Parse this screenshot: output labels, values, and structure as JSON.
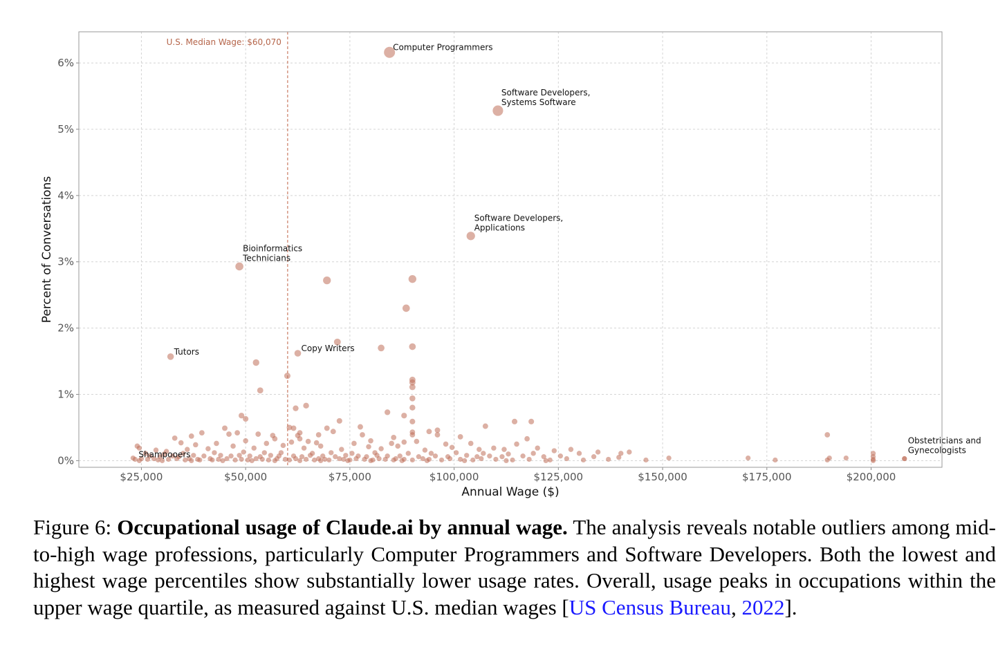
{
  "chart_data": {
    "type": "scatter",
    "xlabel": "Annual Wage ($)",
    "ylabel": "Percent of Conversations",
    "xlim": [
      10000,
      217000
    ],
    "ylim": [
      -0.001,
      0.0647
    ],
    "x_ticks": [
      25000,
      50000,
      75000,
      100000,
      125000,
      150000,
      175000,
      200000
    ],
    "x_tick_labels": [
      "$25,000",
      "$50,000",
      "$75,000",
      "$100,000",
      "$125,000",
      "$150,000",
      "$175,000",
      "$200,000"
    ],
    "y_ticks": [
      0,
      0.01,
      0.02,
      0.03,
      0.04,
      0.05,
      0.06
    ],
    "y_tick_labels": [
      "0%",
      "1%",
      "2%",
      "3%",
      "4%",
      "5%",
      "6%"
    ],
    "grid": true,
    "point_color": "#c0705a",
    "median_line": {
      "x": 60070,
      "label": "U.S. Median Wage: $60,070",
      "color": "#c97b62"
    },
    "labeled_points": [
      {
        "label": [
          "Computer Programmers"
        ],
        "x": 84500,
        "y": 0.0616
      },
      {
        "label": [
          "Software Developers,",
          "Systems Software"
        ],
        "x": 110500,
        "y": 0.0528
      },
      {
        "label": [
          "Software Developers,",
          "Applications"
        ],
        "x": 104000,
        "y": 0.0339
      },
      {
        "label": [
          "Bioinformatics",
          "Technicians"
        ],
        "x": 48500,
        "y": 0.0293
      },
      {
        "label": [
          "Tutors"
        ],
        "x": 32000,
        "y": 0.0157
      },
      {
        "label": [
          "Copy Writers"
        ],
        "x": 62500,
        "y": 0.0162
      },
      {
        "label": [
          "Shampooers"
        ],
        "x": 23500,
        "y": 0.0002
      },
      {
        "label": [
          "Obstetricians and",
          "Gynecologists"
        ],
        "x": 208000,
        "y": 0.0003
      }
    ],
    "points": [
      [
        69500,
        0.0272
      ],
      [
        90000,
        0.0274
      ],
      [
        88500,
        0.023
      ],
      [
        72000,
        0.0179
      ],
      [
        82500,
        0.017
      ],
      [
        90000,
        0.0172
      ],
      [
        52500,
        0.0148
      ],
      [
        60000,
        0.0128
      ],
      [
        53500,
        0.0106
      ],
      [
        90000,
        0.0122
      ],
      [
        90000,
        0.0118
      ],
      [
        90000,
        0.0111
      ],
      [
        90000,
        0.0094
      ],
      [
        90000,
        0.008
      ],
      [
        62000,
        0.0079
      ],
      [
        64500,
        0.0083
      ],
      [
        84000,
        0.0073
      ],
      [
        88000,
        0.0068
      ],
      [
        49000,
        0.0068
      ],
      [
        50000,
        0.0063
      ],
      [
        72500,
        0.006
      ],
      [
        90000,
        0.0059
      ],
      [
        114500,
        0.0059
      ],
      [
        118500,
        0.0059
      ],
      [
        107500,
        0.0052
      ],
      [
        77500,
        0.0051
      ],
      [
        60500,
        0.005
      ],
      [
        61500,
        0.0049
      ],
      [
        45000,
        0.0049
      ],
      [
        69500,
        0.0049
      ],
      [
        96000,
        0.0046
      ],
      [
        94000,
        0.0044
      ],
      [
        71000,
        0.0044
      ],
      [
        90000,
        0.0043
      ],
      [
        39500,
        0.0042
      ],
      [
        63000,
        0.0042
      ],
      [
        46000,
        0.004
      ],
      [
        53000,
        0.004
      ],
      [
        56500,
        0.0038
      ],
      [
        67500,
        0.0039
      ],
      [
        62500,
        0.0038
      ],
      [
        48000,
        0.0042
      ],
      [
        78000,
        0.0039
      ],
      [
        90000,
        0.0039
      ],
      [
        96000,
        0.0039
      ],
      [
        189500,
        0.0039
      ],
      [
        37000,
        0.0037
      ],
      [
        33000,
        0.0034
      ],
      [
        85500,
        0.0035
      ],
      [
        101500,
        0.0036
      ],
      [
        117500,
        0.0033
      ],
      [
        57000,
        0.0033
      ],
      [
        63000,
        0.0033
      ],
      [
        50000,
        0.003
      ],
      [
        61000,
        0.0028
      ],
      [
        65000,
        0.0029
      ],
      [
        80000,
        0.003
      ],
      [
        91000,
        0.0029
      ],
      [
        88000,
        0.0028
      ],
      [
        34500,
        0.0027
      ],
      [
        43000,
        0.0026
      ],
      [
        55000,
        0.0026
      ],
      [
        67000,
        0.0027
      ],
      [
        76000,
        0.0026
      ],
      [
        85000,
        0.0026
      ],
      [
        98000,
        0.0025
      ],
      [
        104000,
        0.0026
      ],
      [
        115000,
        0.0025
      ],
      [
        24000,
        0.0022
      ],
      [
        24500,
        0.0019
      ],
      [
        38000,
        0.0024
      ],
      [
        47000,
        0.0022
      ],
      [
        59000,
        0.0023
      ],
      [
        68000,
        0.0022
      ],
      [
        79500,
        0.0021
      ],
      [
        86500,
        0.0022
      ],
      [
        99500,
        0.002
      ],
      [
        109500,
        0.0019
      ],
      [
        120000,
        0.0019
      ],
      [
        28500,
        0.0016
      ],
      [
        31000,
        0.0014
      ],
      [
        36000,
        0.0017
      ],
      [
        41000,
        0.0018
      ],
      [
        52000,
        0.0019
      ],
      [
        64000,
        0.0019
      ],
      [
        73000,
        0.0017
      ],
      [
        82500,
        0.0018
      ],
      [
        93000,
        0.0016
      ],
      [
        106000,
        0.0017
      ],
      [
        112000,
        0.0017
      ],
      [
        128000,
        0.0017
      ],
      [
        124000,
        0.0015
      ],
      [
        134500,
        0.0013
      ],
      [
        142000,
        0.0013
      ],
      [
        140000,
        0.0011
      ],
      [
        130000,
        0.0011
      ],
      [
        26000,
        0.0011
      ],
      [
        30500,
        0.001
      ],
      [
        35000,
        0.0011
      ],
      [
        42500,
        0.0012
      ],
      [
        49500,
        0.0013
      ],
      [
        54500,
        0.0012
      ],
      [
        58500,
        0.0012
      ],
      [
        66000,
        0.0011
      ],
      [
        70500,
        0.0012
      ],
      [
        75500,
        0.0011
      ],
      [
        81000,
        0.0012
      ],
      [
        89000,
        0.0011
      ],
      [
        94500,
        0.0011
      ],
      [
        100500,
        0.0012
      ],
      [
        107000,
        0.0011
      ],
      [
        113000,
        0.001
      ],
      [
        119000,
        0.0011
      ],
      [
        200500,
        0.0011
      ],
      [
        27000,
        0.0007
      ],
      [
        29500,
        0.0006
      ],
      [
        32500,
        0.0007
      ],
      [
        34000,
        0.0006
      ],
      [
        37500,
        0.0008
      ],
      [
        40000,
        0.0007
      ],
      [
        44000,
        0.0008
      ],
      [
        46500,
        0.0007
      ],
      [
        48500,
        0.0008
      ],
      [
        51000,
        0.0007
      ],
      [
        53500,
        0.0006
      ],
      [
        56000,
        0.0008
      ],
      [
        58000,
        0.0007
      ],
      [
        61500,
        0.0007
      ],
      [
        63500,
        0.0006
      ],
      [
        65500,
        0.0008
      ],
      [
        68500,
        0.0007
      ],
      [
        71500,
        0.0006
      ],
      [
        74000,
        0.0008
      ],
      [
        77000,
        0.0007
      ],
      [
        79000,
        0.0006
      ],
      [
        81500,
        0.0008
      ],
      [
        84000,
        0.0007
      ],
      [
        87000,
        0.0007
      ],
      [
        91500,
        0.0006
      ],
      [
        95500,
        0.0007
      ],
      [
        98500,
        0.0006
      ],
      [
        103000,
        0.0008
      ],
      [
        105500,
        0.0006
      ],
      [
        108500,
        0.0007
      ],
      [
        111500,
        0.0006
      ],
      [
        116500,
        0.0007
      ],
      [
        121500,
        0.0006
      ],
      [
        125500,
        0.0007
      ],
      [
        133500,
        0.0006
      ],
      [
        139500,
        0.0005
      ],
      [
        151500,
        0.0004
      ],
      [
        170500,
        0.0004
      ],
      [
        190000,
        0.0004
      ],
      [
        194000,
        0.0004
      ],
      [
        200500,
        0.0006
      ],
      [
        208000,
        0.0003
      ],
      [
        23000,
        0.0004
      ],
      [
        25000,
        0.0003
      ],
      [
        26500,
        0.0002
      ],
      [
        28000,
        0.0003
      ],
      [
        29000,
        0.0001
      ],
      [
        31500,
        0.0002
      ],
      [
        33500,
        0.0003
      ],
      [
        35500,
        0.0001
      ],
      [
        36500,
        0.0003
      ],
      [
        38500,
        0.0002
      ],
      [
        39000,
        0.0001
      ],
      [
        41500,
        0.0003
      ],
      [
        42000,
        0.0001
      ],
      [
        43500,
        0.0002
      ],
      [
        45500,
        0.0003
      ],
      [
        47500,
        0.0001
      ],
      [
        49000,
        0.0002
      ],
      [
        50500,
        0.0001
      ],
      [
        52500,
        0.0003
      ],
      [
        54000,
        0.0002
      ],
      [
        55500,
        0.0001
      ],
      [
        57500,
        0.0003
      ],
      [
        59500,
        0.0002
      ],
      [
        60500,
        0.0001
      ],
      [
        62000,
        0.0003
      ],
      [
        64500,
        0.0002
      ],
      [
        66500,
        0.0001
      ],
      [
        67500,
        0.0003
      ],
      [
        69000,
        0.0002
      ],
      [
        70000,
        0.0001
      ],
      [
        72500,
        0.0003
      ],
      [
        73500,
        0.0002
      ],
      [
        75000,
        0.0001
      ],
      [
        76500,
        0.0003
      ],
      [
        78500,
        0.0002
      ],
      [
        80500,
        0.0001
      ],
      [
        82000,
        0.0003
      ],
      [
        83500,
        0.0002
      ],
      [
        85500,
        0.0001
      ],
      [
        86000,
        0.0003
      ],
      [
        88000,
        0.0002
      ],
      [
        90000,
        0.0001
      ],
      [
        92500,
        0.0003
      ],
      [
        94000,
        0.0002
      ],
      [
        97000,
        0.0001
      ],
      [
        99000,
        0.0003
      ],
      [
        101500,
        0.0002
      ],
      [
        104500,
        0.0001
      ],
      [
        106500,
        0.0003
      ],
      [
        110000,
        0.0002
      ],
      [
        114000,
        0.0001
      ],
      [
        118000,
        0.0002
      ],
      [
        123000,
        0.0001
      ],
      [
        127000,
        0.0003
      ],
      [
        131000,
        0.0001
      ],
      [
        137000,
        0.0002
      ],
      [
        146000,
        0.0001
      ],
      [
        177000,
        0.0001
      ],
      [
        189500,
        0.0001
      ],
      [
        200500,
        0.0002
      ],
      [
        200500,
        0.0
      ],
      [
        24500,
        0.0
      ],
      [
        30000,
        0.0
      ],
      [
        37000,
        0.0
      ],
      [
        44500,
        0.0
      ],
      [
        51500,
        0.0
      ],
      [
        57000,
        0.0
      ],
      [
        63000,
        0.0
      ],
      [
        68000,
        0.0
      ],
      [
        74500,
        0.0
      ],
      [
        80000,
        0.0
      ],
      [
        87500,
        0.0
      ],
      [
        93500,
        0.0
      ],
      [
        102500,
        0.0
      ],
      [
        112500,
        0.0
      ],
      [
        122000,
        0.0
      ]
    ]
  },
  "caption": {
    "prefix": "Figure 6: ",
    "bold": "Occupational usage of Claude.ai by annual wage.",
    "text": " The analysis reveals notable outliers among mid-to-high wage professions, particularly Computer Programmers and Software Developers. Both the lowest and highest wage percentiles show substantially lower usage rates. Overall, usage peaks in occupations within the upper wage quartile, as measured against U.S. median wages [",
    "cite_org": "US Census Bureau",
    "cite_sep": ", ",
    "cite_year": "2022",
    "suffix": "]."
  }
}
